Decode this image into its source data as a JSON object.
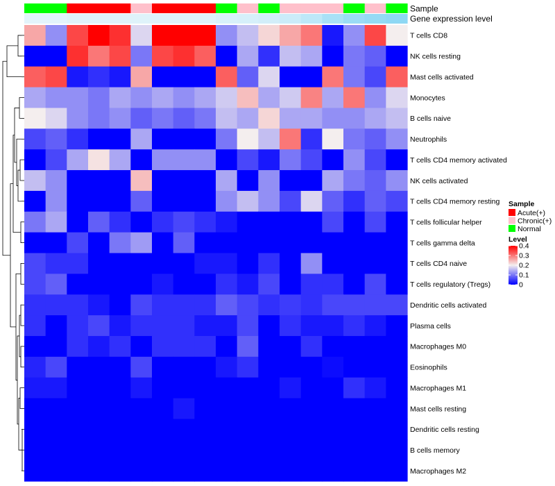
{
  "chart_data": {
    "type": "heatmap",
    "title": "",
    "n_samples": 18,
    "sample_groups": [
      "Normal",
      "Normal",
      "Acute(+)",
      "Acute(+)",
      "Acute(+)",
      "Chronic(+)",
      "Acute(+)",
      "Acute(+)",
      "Acute(+)",
      "Normal",
      "Chronic(+)",
      "Normal",
      "Chronic(+)",
      "Chronic(+)",
      "Chronic(+)",
      "Normal",
      "Chronic(+)",
      "Normal"
    ],
    "gene_expression_level": [
      0.02,
      0.02,
      0.05,
      0.05,
      0.05,
      0.05,
      0.05,
      0.05,
      0.05,
      0.1,
      0.12,
      0.15,
      0.2,
      0.3,
      0.45,
      0.55,
      0.6,
      0.65
    ],
    "annotation_labels": {
      "sample": "Sample",
      "gene_expression": "Gene expression level"
    },
    "rows": [
      "T cells CD8",
      "NK cells resting",
      "Mast cells activated",
      "Monocytes",
      "B cells naive",
      "Neutrophils",
      "T cells CD4 memory activated",
      "NK cells activated",
      "T cells CD4 memory resting",
      "T cells follicular helper",
      "T cells gamma delta",
      "T cells CD4 naive",
      "T cells regulatory (Tregs)",
      "Dendritic cells activated",
      "Plasma cells",
      "Macrophages M0",
      "Eosinophils",
      "Macrophages M1",
      "Mast cells resting",
      "Dendritic cells resting",
      "B cells memory",
      "Macrophages M2"
    ],
    "values": [
      [
        0.26,
        0.12,
        0.34,
        0.4,
        0.36,
        0.18,
        0.4,
        0.4,
        0.4,
        0.12,
        0.16,
        0.22,
        0.26,
        0.3,
        0.02,
        0.12,
        0.34,
        0.2
      ],
      [
        0.0,
        0.0,
        0.36,
        0.3,
        0.34,
        0.1,
        0.34,
        0.36,
        0.32,
        0.0,
        0.14,
        0.04,
        0.16,
        0.14,
        0.0,
        0.1,
        0.08,
        0.0
      ],
      [
        0.32,
        0.34,
        0.02,
        0.04,
        0.02,
        0.26,
        0.0,
        0.0,
        0.0,
        0.32,
        0.08,
        0.18,
        0.0,
        0.0,
        0.3,
        0.1,
        0.06,
        0.32
      ],
      [
        0.14,
        0.12,
        0.12,
        0.1,
        0.14,
        0.12,
        0.14,
        0.12,
        0.14,
        0.17,
        0.24,
        0.14,
        0.17,
        0.29,
        0.14,
        0.3,
        0.12,
        0.18
      ],
      [
        0.2,
        0.18,
        0.12,
        0.1,
        0.12,
        0.08,
        0.1,
        0.08,
        0.1,
        0.16,
        0.14,
        0.22,
        0.14,
        0.14,
        0.12,
        0.12,
        0.14,
        0.16
      ],
      [
        0.06,
        0.08,
        0.04,
        0.0,
        0.0,
        0.14,
        0.0,
        0.0,
        0.0,
        0.1,
        0.2,
        0.16,
        0.3,
        0.04,
        0.2,
        0.1,
        0.08,
        0.12
      ],
      [
        0.0,
        0.06,
        0.14,
        0.21,
        0.14,
        0.0,
        0.12,
        0.12,
        0.12,
        0.0,
        0.06,
        0.02,
        0.1,
        0.06,
        0.0,
        0.12,
        0.06,
        0.0
      ],
      [
        0.16,
        0.12,
        0.0,
        0.0,
        0.0,
        0.24,
        0.0,
        0.0,
        0.0,
        0.14,
        0.0,
        0.12,
        0.0,
        0.0,
        0.14,
        0.1,
        0.08,
        0.12
      ],
      [
        0.0,
        0.12,
        0.0,
        0.0,
        0.0,
        0.08,
        0.0,
        0.0,
        0.0,
        0.12,
        0.16,
        0.12,
        0.06,
        0.18,
        0.08,
        0.04,
        0.08,
        0.06
      ],
      [
        0.1,
        0.14,
        0.0,
        0.08,
        0.04,
        0.0,
        0.04,
        0.06,
        0.04,
        0.02,
        0.0,
        0.0,
        0.0,
        0.0,
        0.06,
        0.0,
        0.06,
        0.0
      ],
      [
        0.0,
        0.0,
        0.06,
        0.0,
        0.1,
        0.13,
        0.0,
        0.08,
        0.0,
        0.0,
        0.0,
        0.0,
        0.0,
        0.0,
        0.0,
        0.0,
        0.0,
        0.0
      ],
      [
        0.06,
        0.04,
        0.04,
        0.0,
        0.0,
        0.0,
        0.0,
        0.0,
        0.02,
        0.02,
        0.0,
        0.04,
        0.0,
        0.12,
        0.0,
        0.0,
        0.0,
        0.0
      ],
      [
        0.06,
        0.08,
        0.0,
        0.0,
        0.0,
        0.0,
        0.02,
        0.0,
        0.0,
        0.04,
        0.02,
        0.06,
        0.0,
        0.04,
        0.04,
        0.0,
        0.06,
        0.0
      ],
      [
        0.04,
        0.04,
        0.04,
        0.02,
        0.0,
        0.06,
        0.04,
        0.04,
        0.04,
        0.08,
        0.06,
        0.04,
        0.05,
        0.04,
        0.06,
        0.06,
        0.06,
        0.06
      ],
      [
        0.04,
        0.0,
        0.04,
        0.06,
        0.02,
        0.04,
        0.04,
        0.04,
        0.02,
        0.02,
        0.06,
        0.0,
        0.04,
        0.02,
        0.02,
        0.04,
        0.02,
        0.0
      ],
      [
        0.0,
        0.0,
        0.04,
        0.02,
        0.04,
        0.0,
        0.04,
        0.04,
        0.04,
        0.0,
        0.08,
        0.0,
        0.0,
        0.04,
        0.0,
        0.0,
        0.0,
        0.0
      ],
      [
        0.03,
        0.06,
        0.0,
        0.0,
        0.0,
        0.06,
        0.0,
        0.0,
        0.0,
        0.02,
        0.04,
        0.0,
        0.0,
        0.0,
        0.01,
        0.0,
        0.0,
        0.0
      ],
      [
        0.02,
        0.02,
        0.0,
        0.0,
        0.0,
        0.02,
        0.0,
        0.0,
        0.0,
        0.0,
        0.0,
        0.0,
        0.02,
        0.0,
        0.0,
        0.04,
        0.02,
        0.0
      ],
      [
        0.0,
        0.0,
        0.0,
        0.0,
        0.0,
        0.0,
        0.0,
        0.02,
        0.0,
        0.0,
        0.0,
        0.0,
        0.0,
        0.0,
        0.0,
        0.0,
        0.0,
        0.0
      ],
      [
        0.0,
        0.0,
        0.0,
        0.0,
        0.0,
        0.0,
        0.0,
        0.0,
        0.0,
        0.0,
        0.0,
        0.0,
        0.0,
        0.0,
        0.0,
        0.0,
        0.0,
        0.0
      ],
      [
        0.0,
        0.0,
        0.0,
        0.0,
        0.0,
        0.0,
        0.0,
        0.0,
        0.0,
        0.0,
        0.0,
        0.0,
        0.0,
        0.0,
        0.0,
        0.0,
        0.0,
        0.0
      ],
      [
        0.0,
        0.0,
        0.0,
        0.0,
        0.0,
        0.0,
        0.0,
        0.0,
        0.0,
        0.0,
        0.0,
        0.0,
        0.0,
        0.0,
        0.0,
        0.0,
        0.0,
        0.0
      ]
    ],
    "color_scale": {
      "min": 0,
      "max": 0.4,
      "low": "#0000ff",
      "mid": "#f4eeee",
      "high": "#ff0000",
      "mid_value": 0.2
    },
    "legend_sample": {
      "title": "Sample",
      "entries": [
        {
          "label": "Acute(+)",
          "color": "#ff0000"
        },
        {
          "label": "Chronic(+)",
          "color": "#ffc0cb"
        },
        {
          "label": "Normal",
          "color": "#00ff00"
        }
      ]
    },
    "legend_level": {
      "title": "Level",
      "ticks": [
        0.4,
        0.3,
        0.2,
        0.1,
        0
      ],
      "tick_labels": [
        "0.4",
        "0.3",
        "0.2",
        "0.1",
        "0"
      ]
    },
    "gene_expression_colors": {
      "low": "#e6f5fb",
      "high": "#5ec8f0"
    },
    "dendrogram": "hierarchical clustering of rows (left side)"
  }
}
